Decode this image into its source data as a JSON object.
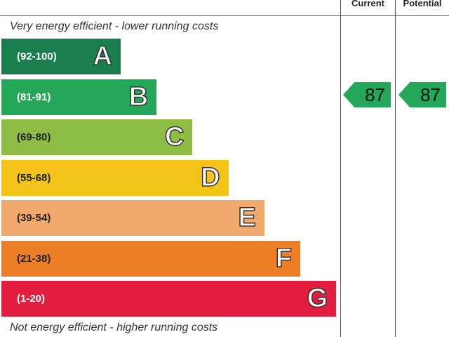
{
  "header": {
    "current": "Current",
    "potential": "Potential"
  },
  "top_label": "Very energy efficient - lower running costs",
  "bottom_label": "Not energy efficient - higher running costs",
  "bands": [
    {
      "range": "(92-100)",
      "letter": "A",
      "color": "#1a7d4e",
      "text_color": "#ffffff"
    },
    {
      "range": "(81-91)",
      "letter": "B",
      "color": "#25a759",
      "text_color": "#ffffff"
    },
    {
      "range": "(69-80)",
      "letter": "C",
      "color": "#8dbd45",
      "text_color": "#222222"
    },
    {
      "range": "(55-68)",
      "letter": "D",
      "color": "#f4c41a",
      "text_color": "#222222"
    },
    {
      "range": "(39-54)",
      "letter": "E",
      "color": "#f1a96c",
      "text_color": "#222222"
    },
    {
      "range": "(21-38)",
      "letter": "F",
      "color": "#ec7f25",
      "text_color": "#222222"
    },
    {
      "range": "(1-20)",
      "letter": "G",
      "color": "#e21d3d",
      "text_color": "#ffffff"
    }
  ],
  "current": {
    "value": "87",
    "color": "#25a759"
  },
  "potential": {
    "value": "87",
    "color": "#25a759"
  }
}
